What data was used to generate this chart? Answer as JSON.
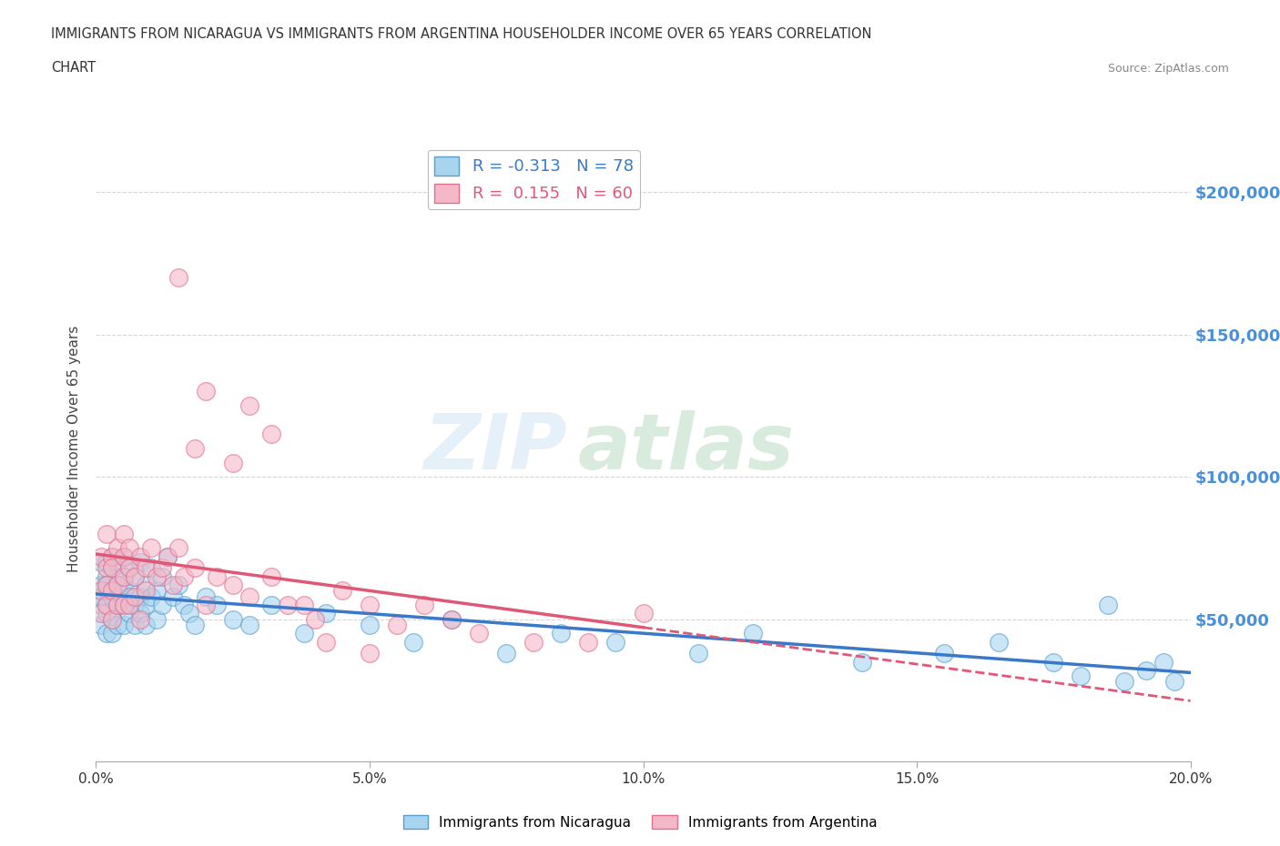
{
  "title_line1": "IMMIGRANTS FROM NICARAGUA VS IMMIGRANTS FROM ARGENTINA HOUSEHOLDER INCOME OVER 65 YEARS CORRELATION",
  "title_line2": "CHART",
  "source_text": "Source: ZipAtlas.com",
  "watermark_zip": "ZIP",
  "watermark_atlas": "atlas",
  "ylabel": "Householder Income Over 65 years",
  "xmin": 0.0,
  "xmax": 0.2,
  "ymin": 0,
  "ymax": 220000,
  "yticks": [
    50000,
    100000,
    150000,
    200000
  ],
  "ytick_labels": [
    "$50,000",
    "$100,000",
    "$150,000",
    "$200,000"
  ],
  "xticks": [
    0.0,
    0.05,
    0.1,
    0.15,
    0.2
  ],
  "xtick_labels": [
    "0.0%",
    "5.0%",
    "10.0%",
    "15.0%",
    "20.0%"
  ],
  "nicaragua_color": "#a8d4f0",
  "argentina_color": "#f5b8c8",
  "nicaragua_edge": "#5b9ec9",
  "argentina_edge": "#e07090",
  "trend_nicaragua_color": "#3a78c9",
  "trend_argentina_color": "#e05878",
  "nicaragua_R": -0.313,
  "nicaragua_N": 78,
  "argentina_R": 0.155,
  "argentina_N": 60,
  "legend_label_nicaragua": "Immigrants from Nicaragua",
  "legend_label_argentina": "Immigrants from Argentina",
  "nicaragua_x": [
    0.001,
    0.001,
    0.001,
    0.001,
    0.001,
    0.002,
    0.002,
    0.002,
    0.002,
    0.002,
    0.002,
    0.002,
    0.003,
    0.003,
    0.003,
    0.003,
    0.003,
    0.003,
    0.004,
    0.004,
    0.004,
    0.004,
    0.004,
    0.005,
    0.005,
    0.005,
    0.005,
    0.005,
    0.006,
    0.006,
    0.006,
    0.006,
    0.007,
    0.007,
    0.007,
    0.008,
    0.008,
    0.008,
    0.009,
    0.009,
    0.009,
    0.01,
    0.01,
    0.011,
    0.011,
    0.012,
    0.012,
    0.013,
    0.014,
    0.015,
    0.016,
    0.017,
    0.018,
    0.02,
    0.022,
    0.025,
    0.028,
    0.032,
    0.038,
    0.042,
    0.05,
    0.058,
    0.065,
    0.075,
    0.085,
    0.095,
    0.11,
    0.12,
    0.14,
    0.155,
    0.165,
    0.175,
    0.18,
    0.185,
    0.188,
    0.192,
    0.195,
    0.197
  ],
  "nicaragua_y": [
    62000,
    55000,
    48000,
    70000,
    58000,
    65000,
    52000,
    60000,
    45000,
    70000,
    55000,
    62000,
    68000,
    50000,
    58000,
    72000,
    45000,
    60000,
    65000,
    55000,
    70000,
    48000,
    60000,
    62000,
    72000,
    55000,
    48000,
    65000,
    60000,
    52000,
    68000,
    58000,
    65000,
    55000,
    48000,
    70000,
    58000,
    52000,
    62000,
    55000,
    48000,
    68000,
    58000,
    60000,
    50000,
    65000,
    55000,
    72000,
    58000,
    62000,
    55000,
    52000,
    48000,
    58000,
    55000,
    50000,
    48000,
    55000,
    45000,
    52000,
    48000,
    42000,
    50000,
    38000,
    45000,
    42000,
    38000,
    45000,
    35000,
    38000,
    42000,
    35000,
    30000,
    55000,
    28000,
    32000,
    35000,
    28000
  ],
  "argentina_x": [
    0.001,
    0.001,
    0.001,
    0.002,
    0.002,
    0.002,
    0.002,
    0.003,
    0.003,
    0.003,
    0.003,
    0.004,
    0.004,
    0.004,
    0.005,
    0.005,
    0.005,
    0.005,
    0.006,
    0.006,
    0.006,
    0.007,
    0.007,
    0.008,
    0.008,
    0.009,
    0.009,
    0.01,
    0.011,
    0.012,
    0.013,
    0.014,
    0.015,
    0.016,
    0.018,
    0.02,
    0.022,
    0.025,
    0.028,
    0.032,
    0.035,
    0.04,
    0.045,
    0.05,
    0.055,
    0.06,
    0.065,
    0.07,
    0.08,
    0.09,
    0.015,
    0.018,
    0.02,
    0.025,
    0.028,
    0.032,
    0.038,
    0.042,
    0.05,
    0.1
  ],
  "argentina_y": [
    60000,
    72000,
    52000,
    68000,
    55000,
    80000,
    62000,
    72000,
    60000,
    50000,
    68000,
    75000,
    55000,
    62000,
    80000,
    65000,
    55000,
    72000,
    68000,
    55000,
    75000,
    65000,
    58000,
    72000,
    50000,
    68000,
    60000,
    75000,
    65000,
    68000,
    72000,
    62000,
    75000,
    65000,
    68000,
    55000,
    65000,
    62000,
    58000,
    65000,
    55000,
    50000,
    60000,
    55000,
    48000,
    55000,
    50000,
    45000,
    42000,
    42000,
    170000,
    110000,
    130000,
    105000,
    125000,
    115000,
    55000,
    42000,
    38000,
    52000
  ]
}
